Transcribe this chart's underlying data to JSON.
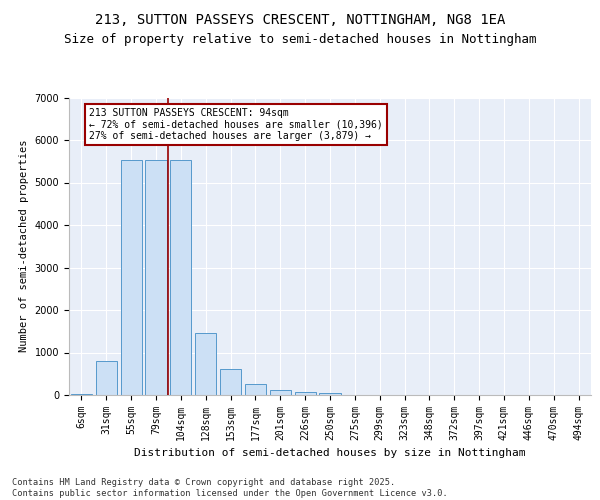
{
  "title1": "213, SUTTON PASSEYS CRESCENT, NOTTINGHAM, NG8 1EA",
  "title2": "Size of property relative to semi-detached houses in Nottingham",
  "xlabel": "Distribution of semi-detached houses by size in Nottingham",
  "ylabel": "Number of semi-detached properties",
  "categories": [
    "6sqm",
    "31sqm",
    "55sqm",
    "79sqm",
    "104sqm",
    "128sqm",
    "153sqm",
    "177sqm",
    "201sqm",
    "226sqm",
    "250sqm",
    "275sqm",
    "299sqm",
    "323sqm",
    "348sqm",
    "372sqm",
    "397sqm",
    "421sqm",
    "446sqm",
    "470sqm",
    "494sqm"
  ],
  "values": [
    30,
    790,
    5530,
    5530,
    5530,
    1470,
    620,
    270,
    120,
    70,
    45,
    0,
    0,
    0,
    0,
    0,
    0,
    0,
    0,
    0,
    0
  ],
  "bar_color": "#cce0f5",
  "bar_edge_color": "#5599cc",
  "vline_pos": 3.5,
  "vline_color": "#990000",
  "annotation_line1": "213 SUTTON PASSEYS CRESCENT: 94sqm",
  "annotation_line2": "← 72% of semi-detached houses are smaller (10,396)",
  "annotation_line3": "27% of semi-detached houses are larger (3,879) →",
  "annotation_box_edgecolor": "#990000",
  "ylim": [
    0,
    7000
  ],
  "yticks": [
    0,
    1000,
    2000,
    3000,
    4000,
    5000,
    6000,
    7000
  ],
  "bg_color": "#e8eef8",
  "footer1": "Contains HM Land Registry data © Crown copyright and database right 2025.",
  "footer2": "Contains public sector information licensed under the Open Government Licence v3.0.",
  "title_fontsize": 10,
  "subtitle_fontsize": 9,
  "annot_fontsize": 7,
  "xlabel_fontsize": 8,
  "ylabel_fontsize": 7.5,
  "tick_fontsize": 7
}
